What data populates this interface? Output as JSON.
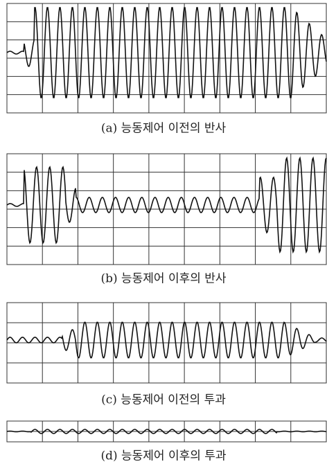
{
  "panels": [
    {
      "caption": "(a) 능동제어 이전의 반사"
    },
    {
      "caption": "(b) 능동제어 이후의 반사"
    },
    {
      "caption": "(c) 능동제어 이전의 투과"
    },
    {
      "caption": "(d) 능동제어 이후의 투과"
    }
  ]
}
